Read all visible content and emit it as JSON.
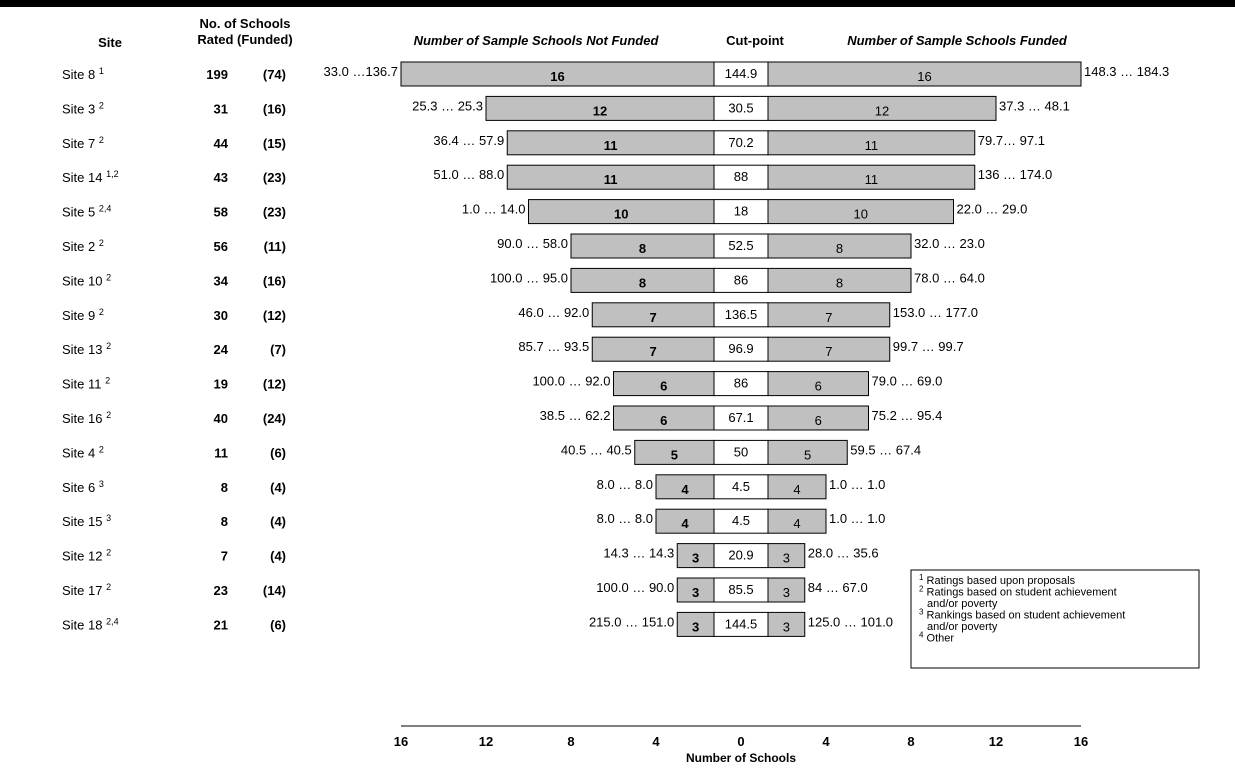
{
  "headers": {
    "site": "Site",
    "rated_line1": "No. of Schools",
    "rated_line2": "Rated (Funded)",
    "not_funded": "Number of Sample Schools Not Funded",
    "cutpoint": "Cut-point",
    "funded": "Number of Sample Schools Funded"
  },
  "chart_data": {
    "type": "bar",
    "orientation": "horizontal-diverging",
    "xlabel": "Number of Schools",
    "xlim": [
      -16,
      16
    ],
    "x_ticks": [
      16,
      12,
      8,
      4,
      0,
      4,
      8,
      12,
      16
    ],
    "rows": [
      {
        "site": "Site 8",
        "sup": "1",
        "rated": "199",
        "funded": "(74)",
        "not_funded_count": 16,
        "funded_count": 16,
        "cutpoint": "144.9",
        "left_range": "33.0 …136.7",
        "right_range": "148.3 … 184.3"
      },
      {
        "site": "Site 3",
        "sup": "2",
        "rated": "31",
        "funded": "(16)",
        "not_funded_count": 12,
        "funded_count": 12,
        "cutpoint": "30.5",
        "left_range": "25.3 … 25.3",
        "right_range": "37.3 … 48.1"
      },
      {
        "site": "Site 7",
        "sup": "2",
        "rated": "44",
        "funded": "(15)",
        "not_funded_count": 11,
        "funded_count": 11,
        "cutpoint": "70.2",
        "left_range": "36.4 … 57.9",
        "right_range": "79.7… 97.1"
      },
      {
        "site": "Site 14",
        "sup": "1,2",
        "rated": "43",
        "funded": "(23)",
        "not_funded_count": 11,
        "funded_count": 11,
        "cutpoint": "88",
        "left_range": "51.0 … 88.0",
        "right_range": "136 … 174.0"
      },
      {
        "site": "Site 5",
        "sup": "2,4",
        "rated": "58",
        "funded": "(23)",
        "not_funded_count": 10,
        "funded_count": 10,
        "cutpoint": "18",
        "left_range": "1.0 … 14.0",
        "right_range": "22.0 … 29.0"
      },
      {
        "site": "Site 2",
        "sup": "2",
        "rated": "56",
        "funded": "(11)",
        "not_funded_count": 8,
        "funded_count": 8,
        "cutpoint": "52.5",
        "left_range": "90.0 … 58.0",
        "right_range": "32.0 … 23.0"
      },
      {
        "site": "Site 10",
        "sup": "2",
        "rated": "34",
        "funded": "(16)",
        "not_funded_count": 8,
        "funded_count": 8,
        "cutpoint": "86",
        "left_range": "100.0 … 95.0",
        "right_range": "78.0 … 64.0"
      },
      {
        "site": "Site 9",
        "sup": "2",
        "rated": "30",
        "funded": "(12)",
        "not_funded_count": 7,
        "funded_count": 7,
        "cutpoint": "136.5",
        "left_range": "46.0 … 92.0",
        "right_range": "153.0 … 177.0"
      },
      {
        "site": "Site 13",
        "sup": "2",
        "rated": "24",
        "funded": "(7)",
        "not_funded_count": 7,
        "funded_count": 7,
        "cutpoint": "96.9",
        "left_range": "85.7 … 93.5",
        "right_range": "99.7 … 99.7"
      },
      {
        "site": "Site 11",
        "sup": "2",
        "rated": "19",
        "funded": "(12)",
        "not_funded_count": 6,
        "funded_count": 6,
        "cutpoint": "86",
        "left_range": "100.0 … 92.0",
        "right_range": "79.0 … 69.0"
      },
      {
        "site": "Site 16",
        "sup": "2",
        "rated": "40",
        "funded": "(24)",
        "not_funded_count": 6,
        "funded_count": 6,
        "cutpoint": "67.1",
        "left_range": "38.5 … 62.2",
        "right_range": "75.2 … 95.4"
      },
      {
        "site": "Site 4",
        "sup": "2",
        "rated": "11",
        "funded": "(6)",
        "not_funded_count": 5,
        "funded_count": 5,
        "cutpoint": "50",
        "left_range": "40.5 … 40.5",
        "right_range": "59.5 … 67.4"
      },
      {
        "site": "Site 6",
        "sup": "3",
        "rated": "8",
        "funded": "(4)",
        "not_funded_count": 4,
        "funded_count": 4,
        "cutpoint": "4.5",
        "left_range": "8.0 … 8.0",
        "right_range": "1.0 … 1.0"
      },
      {
        "site": "Site 15",
        "sup": "3",
        "rated": "8",
        "funded": "(4)",
        "not_funded_count": 4,
        "funded_count": 4,
        "cutpoint": "4.5",
        "left_range": "8.0 … 8.0",
        "right_range": "1.0 … 1.0"
      },
      {
        "site": "Site 12",
        "sup": "2",
        "rated": "7",
        "funded": "(4)",
        "not_funded_count": 3,
        "funded_count": 3,
        "cutpoint": "20.9",
        "left_range": "14.3 … 14.3",
        "right_range": "28.0 … 35.6"
      },
      {
        "site": "Site 17",
        "sup": "2",
        "rated": "23",
        "funded": "(14)",
        "not_funded_count": 3,
        "funded_count": 3,
        "cutpoint": "85.5",
        "left_range": "100.0 … 90.0",
        "right_range": "84 … 67.0"
      },
      {
        "site": "Site 18",
        "sup": "2,4",
        "rated": "21",
        "funded": "(6)",
        "not_funded_count": 3,
        "funded_count": 3,
        "cutpoint": "144.5",
        "left_range": "215.0 … 151.0",
        "right_range": "125.0 … 101.0"
      }
    ],
    "footnotes": [
      {
        "mark": "1",
        "lines": [
          "Ratings based upon proposals"
        ]
      },
      {
        "mark": "2",
        "lines": [
          "Ratings based on student achievement",
          "and/or poverty"
        ]
      },
      {
        "mark": "3",
        "lines": [
          "Rankings based on student achievement",
          "and/or poverty"
        ]
      },
      {
        "mark": "4",
        "lines": [
          "Other"
        ]
      }
    ]
  },
  "colors": {
    "bar_fill": "#c0c0c0",
    "cutpoint_fill": "#ffffff",
    "stroke": "#000000"
  }
}
